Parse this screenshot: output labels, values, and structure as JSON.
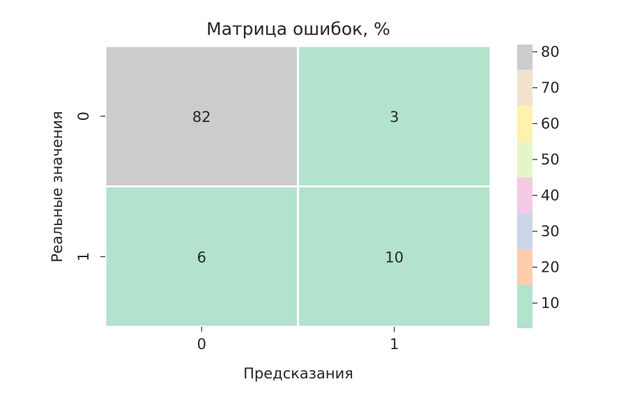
{
  "chart_data": {
    "type": "heatmap",
    "title": "Матрица ошибок, %",
    "xlabel": "Предсказания",
    "ylabel": "Реальные значения",
    "x_categories": [
      "0",
      "1"
    ],
    "y_categories": [
      "0",
      "1"
    ],
    "values": [
      [
        82,
        3
      ],
      [
        6,
        10
      ]
    ],
    "annotations": [
      [
        "82",
        "3"
      ],
      [
        "6",
        "10"
      ]
    ],
    "colormap": {
      "name": "Pastel2",
      "bins": [
        {
          "range": [
            0,
            15
          ],
          "color": "#b3e2cd"
        },
        {
          "range": [
            15,
            25
          ],
          "color": "#fdcdac"
        },
        {
          "range": [
            25,
            35
          ],
          "color": "#cbd5e8"
        },
        {
          "range": [
            35,
            45
          ],
          "color": "#f4cae4"
        },
        {
          "range": [
            45,
            55
          ],
          "color": "#e6f5c9"
        },
        {
          "range": [
            55,
            65
          ],
          "color": "#fff2ae"
        },
        {
          "range": [
            65,
            75
          ],
          "color": "#f1e2cc"
        },
        {
          "range": [
            75,
            90
          ],
          "color": "#cccccc"
        }
      ]
    },
    "colorbar": {
      "range": [
        3,
        82
      ],
      "ticks": [
        10,
        20,
        30,
        40,
        50,
        60,
        70,
        80
      ],
      "tick_labels": [
        "10",
        "20",
        "30",
        "40",
        "50",
        "60",
        "70",
        "80"
      ],
      "segment_colors": [
        "#b3e2cd",
        "#fdcdac",
        "#cbd5e8",
        "#f4cae4",
        "#e6f5c9",
        "#fff2ae",
        "#f1e2cc",
        "#cccccc"
      ]
    },
    "grid_line_color": "#ffffff"
  }
}
